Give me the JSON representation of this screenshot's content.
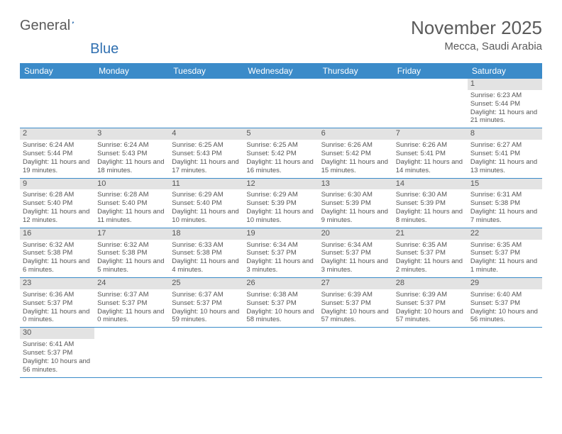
{
  "logo": {
    "text1": "General",
    "text2": "Blue"
  },
  "title": "November 2025",
  "location": "Mecca, Saudi Arabia",
  "header_bg": "#3b8bc9",
  "header_fg": "#ffffff",
  "daynum_bg": "#e3e3e3",
  "row_border": "#3b8bc9",
  "weekdays": [
    "Sunday",
    "Monday",
    "Tuesday",
    "Wednesday",
    "Thursday",
    "Friday",
    "Saturday"
  ],
  "weeks": [
    [
      null,
      null,
      null,
      null,
      null,
      null,
      {
        "n": "1",
        "sr": "6:23 AM",
        "ss": "5:44 PM",
        "dl": "11 hours and 21 minutes."
      }
    ],
    [
      {
        "n": "2",
        "sr": "6:24 AM",
        "ss": "5:44 PM",
        "dl": "11 hours and 19 minutes."
      },
      {
        "n": "3",
        "sr": "6:24 AM",
        "ss": "5:43 PM",
        "dl": "11 hours and 18 minutes."
      },
      {
        "n": "4",
        "sr": "6:25 AM",
        "ss": "5:43 PM",
        "dl": "11 hours and 17 minutes."
      },
      {
        "n": "5",
        "sr": "6:25 AM",
        "ss": "5:42 PM",
        "dl": "11 hours and 16 minutes."
      },
      {
        "n": "6",
        "sr": "6:26 AM",
        "ss": "5:42 PM",
        "dl": "11 hours and 15 minutes."
      },
      {
        "n": "7",
        "sr": "6:26 AM",
        "ss": "5:41 PM",
        "dl": "11 hours and 14 minutes."
      },
      {
        "n": "8",
        "sr": "6:27 AM",
        "ss": "5:41 PM",
        "dl": "11 hours and 13 minutes."
      }
    ],
    [
      {
        "n": "9",
        "sr": "6:28 AM",
        "ss": "5:40 PM",
        "dl": "11 hours and 12 minutes."
      },
      {
        "n": "10",
        "sr": "6:28 AM",
        "ss": "5:40 PM",
        "dl": "11 hours and 11 minutes."
      },
      {
        "n": "11",
        "sr": "6:29 AM",
        "ss": "5:40 PM",
        "dl": "11 hours and 10 minutes."
      },
      {
        "n": "12",
        "sr": "6:29 AM",
        "ss": "5:39 PM",
        "dl": "11 hours and 10 minutes."
      },
      {
        "n": "13",
        "sr": "6:30 AM",
        "ss": "5:39 PM",
        "dl": "11 hours and 9 minutes."
      },
      {
        "n": "14",
        "sr": "6:30 AM",
        "ss": "5:39 PM",
        "dl": "11 hours and 8 minutes."
      },
      {
        "n": "15",
        "sr": "6:31 AM",
        "ss": "5:38 PM",
        "dl": "11 hours and 7 minutes."
      }
    ],
    [
      {
        "n": "16",
        "sr": "6:32 AM",
        "ss": "5:38 PM",
        "dl": "11 hours and 6 minutes."
      },
      {
        "n": "17",
        "sr": "6:32 AM",
        "ss": "5:38 PM",
        "dl": "11 hours and 5 minutes."
      },
      {
        "n": "18",
        "sr": "6:33 AM",
        "ss": "5:38 PM",
        "dl": "11 hours and 4 minutes."
      },
      {
        "n": "19",
        "sr": "6:34 AM",
        "ss": "5:37 PM",
        "dl": "11 hours and 3 minutes."
      },
      {
        "n": "20",
        "sr": "6:34 AM",
        "ss": "5:37 PM",
        "dl": "11 hours and 3 minutes."
      },
      {
        "n": "21",
        "sr": "6:35 AM",
        "ss": "5:37 PM",
        "dl": "11 hours and 2 minutes."
      },
      {
        "n": "22",
        "sr": "6:35 AM",
        "ss": "5:37 PM",
        "dl": "11 hours and 1 minute."
      }
    ],
    [
      {
        "n": "23",
        "sr": "6:36 AM",
        "ss": "5:37 PM",
        "dl": "11 hours and 0 minutes."
      },
      {
        "n": "24",
        "sr": "6:37 AM",
        "ss": "5:37 PM",
        "dl": "11 hours and 0 minutes."
      },
      {
        "n": "25",
        "sr": "6:37 AM",
        "ss": "5:37 PM",
        "dl": "10 hours and 59 minutes."
      },
      {
        "n": "26",
        "sr": "6:38 AM",
        "ss": "5:37 PM",
        "dl": "10 hours and 58 minutes."
      },
      {
        "n": "27",
        "sr": "6:39 AM",
        "ss": "5:37 PM",
        "dl": "10 hours and 57 minutes."
      },
      {
        "n": "28",
        "sr": "6:39 AM",
        "ss": "5:37 PM",
        "dl": "10 hours and 57 minutes."
      },
      {
        "n": "29",
        "sr": "6:40 AM",
        "ss": "5:37 PM",
        "dl": "10 hours and 56 minutes."
      }
    ],
    [
      {
        "n": "30",
        "sr": "6:41 AM",
        "ss": "5:37 PM",
        "dl": "10 hours and 56 minutes."
      },
      null,
      null,
      null,
      null,
      null,
      null
    ]
  ],
  "labels": {
    "sunrise": "Sunrise: ",
    "sunset": "Sunset: ",
    "daylight": "Daylight: "
  }
}
